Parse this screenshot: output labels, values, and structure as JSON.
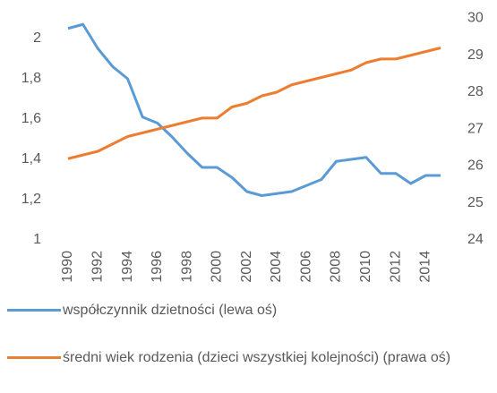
{
  "chart_data": {
    "type": "line",
    "x": [
      1990,
      1991,
      1992,
      1993,
      1994,
      1995,
      1996,
      1997,
      1998,
      1999,
      2000,
      2001,
      2002,
      2003,
      2004,
      2005,
      2006,
      2007,
      2008,
      2009,
      2010,
      2011,
      2012,
      2013,
      2014,
      2015
    ],
    "xlim": [
      1990,
      2015
    ],
    "xticks": [
      1990,
      1992,
      1994,
      1996,
      1998,
      2000,
      2002,
      2004,
      2006,
      2008,
      2010,
      2012,
      2014
    ],
    "ylim": [
      1,
      2.1
    ],
    "yticks": [
      1,
      {
        "value": 1.2,
        "label": "1,2"
      },
      {
        "value": 1.4,
        "label": "1,4"
      },
      {
        "value": 1.6,
        "label": "1,6"
      },
      {
        "value": 1.8,
        "label": "1,8"
      },
      2
    ],
    "y2lim": [
      24,
      30
    ],
    "y2ticks": [
      24,
      25,
      26,
      27,
      28,
      29,
      30
    ],
    "grid": false,
    "series": [
      {
        "name": "współczynnik dzietności (lewa oś)",
        "color": "#5b9bd5",
        "values": [
          2.05,
          2.07,
          1.95,
          1.86,
          1.8,
          1.61,
          1.58,
          1.51,
          1.43,
          1.36,
          1.36,
          1.31,
          1.24,
          1.22,
          1.23,
          1.24,
          1.27,
          1.3,
          1.39,
          1.4,
          1.41,
          1.33,
          1.33,
          1.28,
          1.32,
          1.32
        ]
      },
      {
        "name": "średni wiek rodzenia (dzieci wszystkiej kolejności) (prawa oś)",
        "color": "#ed7d31",
        "axis": "y2",
        "values": [
          26.2,
          26.3,
          26.4,
          26.6,
          26.8,
          26.9,
          27.0,
          27.1,
          27.2,
          27.3,
          27.3,
          27.6,
          27.7,
          27.9,
          28.0,
          28.2,
          28.3,
          28.4,
          28.5,
          28.6,
          28.8,
          28.9,
          28.9,
          29.0,
          29.1,
          29.2
        ]
      }
    ]
  }
}
